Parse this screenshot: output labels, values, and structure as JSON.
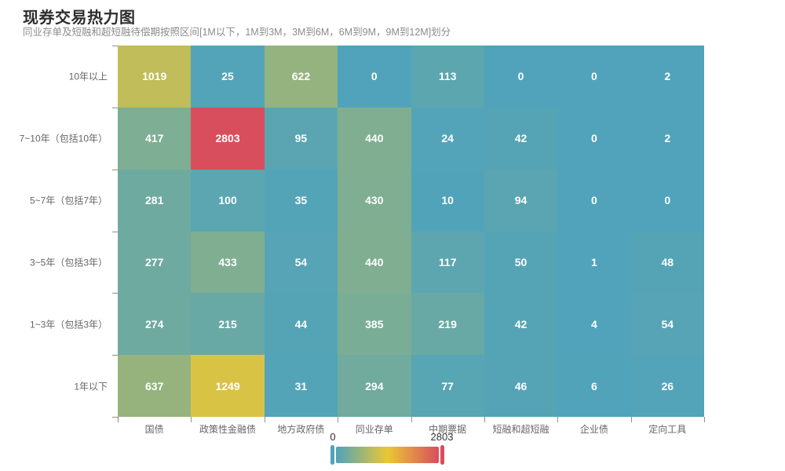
{
  "chart_data": {
    "type": "heatmap",
    "title": "现券交易热力图",
    "subtitle": "同业存单及短融和超短融待偿期按照区间[1M以下，1M到3M，3M到6M，6M到9M，9M到12M]划分",
    "x_categories": [
      "国债",
      "政策性金融债",
      "地方政府债",
      "同业存单",
      "中期票据",
      "短融和超短融",
      "企业债",
      "定向工具"
    ],
    "y_categories": [
      "10年以上",
      "7~10年（包括10年）",
      "5~7年（包括7年）",
      "3~5年（包括3年）",
      "1~3年（包括3年）",
      "1年以下"
    ],
    "values": [
      [
        1019,
        25,
        622,
        0,
        113,
        0,
        0,
        2
      ],
      [
        417,
        2803,
        95,
        440,
        24,
        42,
        0,
        2
      ],
      [
        281,
        100,
        35,
        430,
        10,
        94,
        0,
        0
      ],
      [
        277,
        433,
        54,
        440,
        117,
        50,
        1,
        48
      ],
      [
        274,
        215,
        44,
        385,
        219,
        42,
        4,
        54
      ],
      [
        637,
        1249,
        31,
        294,
        77,
        46,
        6,
        26
      ]
    ],
    "visual_map": {
      "min": 0,
      "max": 2803,
      "min_label": "0",
      "max_label": "2803",
      "colors": [
        "#50a3ba",
        "#eac736",
        "#d94e5d"
      ],
      "legend_position": "bottom-center"
    },
    "value_label_color": "#ffffff",
    "grid": false,
    "legend_orientation": "horizontal"
  },
  "colors": {
    "background": "#ffffff",
    "title_text": "#2e2e2e",
    "subtitle_text": "#8c8c8c",
    "axis_label_text": "#666666",
    "axis_tick": "#8f8f8f",
    "min_color": "#50a3ba",
    "mid_color": "#eac736",
    "max_color": "#d94e5d"
  }
}
